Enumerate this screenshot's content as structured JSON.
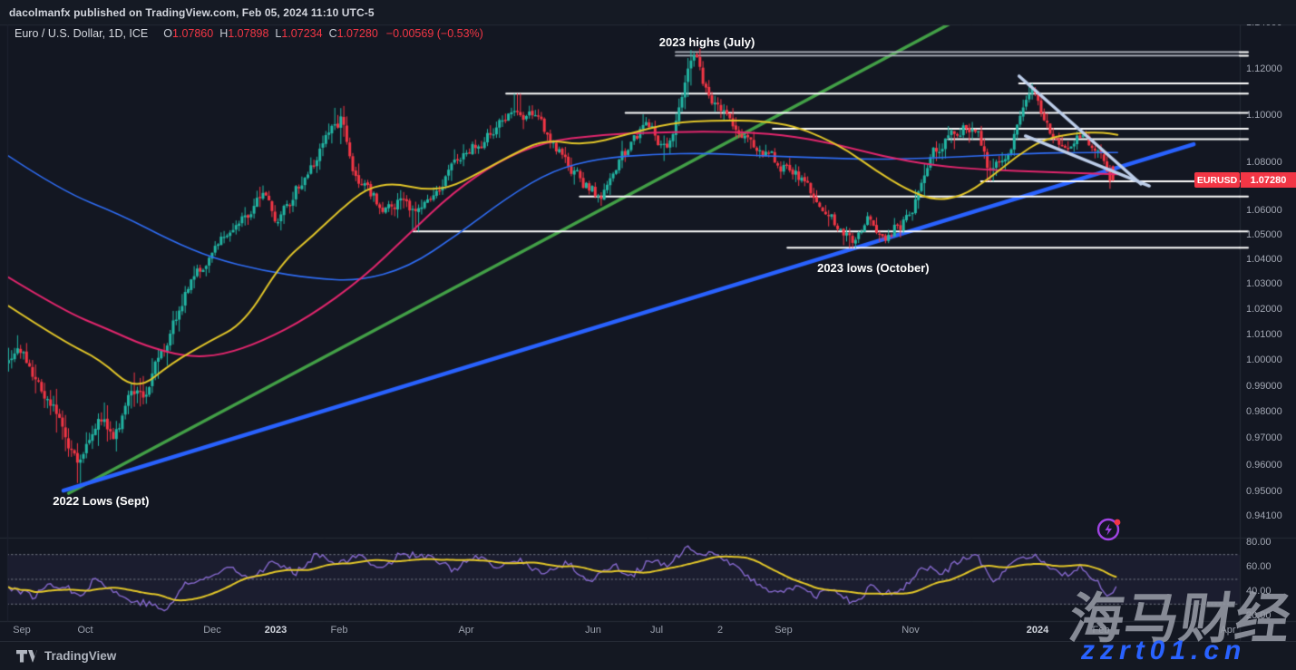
{
  "topbar": {
    "publish_info": "dacolmanfx published on TradingView.com, Feb 05, 2024 11:10 UTC-5"
  },
  "legend": {
    "title": "Euro / U.S. Dollar, 1D, ICE",
    "items": [
      {
        "k": "O",
        "v": "1.07860"
      },
      {
        "k": "H",
        "v": "1.07898"
      },
      {
        "k": "L",
        "v": "1.07234"
      },
      {
        "k": "C",
        "v": "1.07280"
      }
    ],
    "change": "−0.00569 (−0.53%)"
  },
  "price_label": {
    "symbol": "EURUSD",
    "value": "1.07280"
  },
  "price_axis": {
    "values": [
      "1.14000",
      "1.12000",
      "1.10000",
      "1.08000",
      "1.06000",
      "1.05000",
      "1.04000",
      "1.03000",
      "1.02000",
      "1.01000",
      "1.00000",
      "0.99000",
      "0.98000",
      "0.97000",
      "0.96000",
      "0.95000",
      "0.94100"
    ],
    "scale": "log"
  },
  "rsi_axis": {
    "values": [
      "80.00",
      "60.00",
      "40.00",
      "20.00"
    ]
  },
  "time_axis": [
    {
      "label": "Sep",
      "t": 0,
      "bold": false
    },
    {
      "label": "Oct",
      "t": 1,
      "bold": false
    },
    {
      "label": "Dec",
      "t": 3,
      "bold": false
    },
    {
      "label": "2023",
      "t": 4,
      "bold": true
    },
    {
      "label": "Feb",
      "t": 5,
      "bold": false
    },
    {
      "label": "Apr",
      "t": 7,
      "bold": false
    },
    {
      "label": "Jun",
      "t": 9,
      "bold": false
    },
    {
      "label": "Jul",
      "t": 10,
      "bold": false
    },
    {
      "label": "2",
      "t": 11,
      "bold": false
    },
    {
      "label": "Sep",
      "t": 12,
      "bold": false
    },
    {
      "label": "Nov",
      "t": 14,
      "bold": false
    },
    {
      "label": "2024",
      "t": 16,
      "bold": true
    },
    {
      "label": "Feb",
      "t": 17,
      "bold": false
    },
    {
      "label": "Apr",
      "t": 19,
      "bold": false
    }
  ],
  "watermark": {
    "line1": "海马财经",
    "line2": "zzrt01.cn"
  },
  "footer": {
    "brand": "TradingView"
  },
  "colors": {
    "background": "#131722",
    "up_candle": "#22b5a3",
    "down_candle": "#f23645",
    "ma_yellow": "#e2c629",
    "ma_pink": "#e2266d",
    "ma_blue": "#2f6df5",
    "trend_green": "#43a047",
    "trend_blue": "#2962ff",
    "wedge": "#bccde9",
    "level_white": "#ffffff",
    "level_gray": "#b4b8c1",
    "rsi_purple": "#8568cc",
    "rsi_yellow": "#e2c629",
    "rsi_band": "rgba(133,104,204,0.08)",
    "rsi_dash": "#767b87",
    "accent_red": "#f23645",
    "separator": "#262b36"
  },
  "chart_data": {
    "type": "candlestick",
    "symbol": "EURUSD",
    "title": "Euro / U.S. Dollar",
    "timeframe": "1D",
    "exchange": "ICE",
    "last_candle": {
      "open": 1.0786,
      "high": 1.07898,
      "low": 1.07234,
      "close": 1.0728,
      "change": -0.00569,
      "change_pct": -0.53
    },
    "x_unit": "months_since_2022-09-01",
    "y_scale": "log",
    "visible_price_range": [
      0.941,
      1.14
    ],
    "price_path": [
      [
        -0.25,
        1.0015
      ],
      [
        0,
        1.004
      ],
      [
        0.25,
        0.992
      ],
      [
        0.5,
        0.983
      ],
      [
        0.7,
        0.972
      ],
      [
        0.9,
        0.96
      ],
      [
        1.05,
        0.969
      ],
      [
        1.25,
        0.978
      ],
      [
        1.45,
        0.972
      ],
      [
        1.7,
        0.986
      ],
      [
        1.95,
        0.988
      ],
      [
        2.2,
        1.002
      ],
      [
        2.45,
        1.018
      ],
      [
        2.7,
        1.032
      ],
      [
        3.0,
        1.042
      ],
      [
        3.3,
        1.053
      ],
      [
        3.6,
        1.06
      ],
      [
        3.85,
        1.067
      ],
      [
        4.05,
        1.054
      ],
      [
        4.3,
        1.068
      ],
      [
        4.6,
        1.08
      ],
      [
        4.85,
        1.092
      ],
      [
        5.05,
        1.099
      ],
      [
        5.2,
        1.081
      ],
      [
        5.45,
        1.068
      ],
      [
        5.7,
        1.061
      ],
      [
        5.95,
        1.064
      ],
      [
        6.2,
        1.057
      ],
      [
        6.45,
        1.065
      ],
      [
        6.7,
        1.073
      ],
      [
        6.95,
        1.083
      ],
      [
        7.2,
        1.088
      ],
      [
        7.5,
        1.095
      ],
      [
        7.8,
        1.102
      ],
      [
        8.05,
        1.099
      ],
      [
        8.35,
        1.089
      ],
      [
        8.65,
        1.077
      ],
      [
        8.95,
        1.069
      ],
      [
        9.1,
        1.066
      ],
      [
        9.35,
        1.077
      ],
      [
        9.65,
        1.09
      ],
      [
        9.85,
        1.096
      ],
      [
        10.05,
        1.088
      ],
      [
        10.2,
        1.086
      ],
      [
        10.4,
        1.108
      ],
      [
        10.5,
        1.12
      ],
      [
        10.62,
        1.123
      ],
      [
        10.75,
        1.113
      ],
      [
        10.95,
        1.102
      ],
      [
        11.2,
        1.096
      ],
      [
        11.5,
        1.089
      ],
      [
        11.8,
        1.082
      ],
      [
        12.1,
        1.077
      ],
      [
        12.4,
        1.07
      ],
      [
        12.7,
        1.058
      ],
      [
        12.95,
        1.051
      ],
      [
        13.1,
        1.048
      ],
      [
        13.35,
        1.056
      ],
      [
        13.6,
        1.052
      ],
      [
        13.85,
        1.055
      ],
      [
        14.1,
        1.065
      ],
      [
        14.35,
        1.085
      ],
      [
        14.6,
        1.091
      ],
      [
        14.85,
        1.096
      ],
      [
        15.05,
        1.094
      ],
      [
        15.25,
        1.075
      ],
      [
        15.45,
        1.083
      ],
      [
        15.7,
        1.095
      ],
      [
        15.9,
        1.11
      ],
      [
        16.05,
        1.1
      ],
      [
        16.2,
        1.092
      ],
      [
        16.45,
        1.088
      ],
      [
        16.7,
        1.092
      ],
      [
        16.9,
        1.086
      ],
      [
        17.05,
        1.082
      ],
      [
        17.13,
        1.077
      ],
      [
        17.17,
        1.073
      ]
    ],
    "key_extremes": [
      {
        "t": 0.9,
        "type": "low",
        "price": 0.9536
      },
      {
        "t": 5.05,
        "type": "high",
        "price": 1.1033
      },
      {
        "t": 6.2,
        "type": "low",
        "price": 1.0516
      },
      {
        "t": 7.8,
        "type": "high",
        "price": 1.1095
      },
      {
        "t": 9.1,
        "type": "low",
        "price": 1.0635
      },
      {
        "t": 10.62,
        "type": "high",
        "price": 1.127
      },
      {
        "t": 13.08,
        "type": "low",
        "price": 1.0448
      },
      {
        "t": 15.25,
        "type": "low",
        "price": 1.0723
      },
      {
        "t": 15.9,
        "type": "high",
        "price": 1.1139
      }
    ],
    "ma_yellow": [
      [
        -0.23,
        1.0219
      ],
      [
        0.66,
        1.0074
      ],
      [
        1.23,
        1.0007
      ],
      [
        1.8,
        0.9881
      ],
      [
        2.37,
        0.9993
      ],
      [
        2.94,
        1.0074
      ],
      [
        3.51,
        1.0148
      ],
      [
        4.09,
        1.0389
      ],
      [
        4.59,
        1.05
      ],
      [
        5.01,
        1.0604
      ],
      [
        5.44,
        1.0696
      ],
      [
        5.87,
        1.0715
      ],
      [
        6.3,
        1.0689
      ],
      [
        6.73,
        1.0696
      ],
      [
        7.16,
        1.0752
      ],
      [
        7.66,
        1.0826
      ],
      [
        8.23,
        1.09
      ],
      [
        8.87,
        1.0874
      ],
      [
        9.51,
        1.0919
      ],
      [
        10.23,
        1.097
      ],
      [
        10.94,
        1.0981
      ],
      [
        11.66,
        1.0978
      ],
      [
        12.16,
        1.0956
      ],
      [
        12.59,
        1.0911
      ],
      [
        13.01,
        1.0852
      ],
      [
        13.44,
        1.077
      ],
      [
        13.94,
        1.0689
      ],
      [
        14.37,
        1.0644
      ],
      [
        14.8,
        1.0659
      ],
      [
        15.23,
        1.0733
      ],
      [
        15.66,
        1.0826
      ],
      [
        16.09,
        1.09
      ],
      [
        16.59,
        1.0926
      ],
      [
        17.01,
        1.093
      ],
      [
        17.26,
        1.0919
      ]
    ],
    "ma_pink": [
      [
        -0.23,
        1.0333
      ],
      [
        0.66,
        1.0196
      ],
      [
        1.37,
        1.0122
      ],
      [
        1.94,
        1.0059
      ],
      [
        2.59,
        1.0015
      ],
      [
        3.16,
        1.0022
      ],
      [
        3.8,
        1.0078
      ],
      [
        4.51,
        1.017
      ],
      [
        5.37,
        1.0326
      ],
      [
        6.09,
        1.0504
      ],
      [
        6.8,
        1.0678
      ],
      [
        7.51,
        1.0807
      ],
      [
        8.23,
        1.0889
      ],
      [
        9.09,
        1.0919
      ],
      [
        9.99,
        1.093
      ],
      [
        11.09,
        1.0933
      ],
      [
        11.99,
        1.0919
      ],
      [
        12.8,
        1.0881
      ],
      [
        13.59,
        1.0826
      ],
      [
        14.37,
        1.0789
      ],
      [
        15.23,
        1.077
      ],
      [
        16.09,
        1.0763
      ],
      [
        16.8,
        1.0756
      ],
      [
        17.26,
        1.0752
      ]
    ],
    "ma_blue": [
      [
        -0.23,
        1.0833
      ],
      [
        0.61,
        1.0685
      ],
      [
        1.56,
        1.0585
      ],
      [
        2.33,
        1.0481
      ],
      [
        3.01,
        1.0407
      ],
      [
        3.8,
        1.0356
      ],
      [
        4.59,
        1.0326
      ],
      [
        5.3,
        1.0315
      ],
      [
        6.09,
        1.037
      ],
      [
        6.87,
        1.0504
      ],
      [
        7.66,
        1.0659
      ],
      [
        8.37,
        1.077
      ],
      [
        9.09,
        1.0819
      ],
      [
        9.94,
        1.0837
      ],
      [
        10.8,
        1.0841
      ],
      [
        11.66,
        1.083
      ],
      [
        12.51,
        1.0822
      ],
      [
        13.37,
        1.0815
      ],
      [
        14.23,
        1.0819
      ],
      [
        15.09,
        1.083
      ],
      [
        15.94,
        1.0841
      ],
      [
        16.66,
        1.0844
      ],
      [
        17.26,
        1.0844
      ]
    ],
    "levels": [
      {
        "price": 1.1276,
        "from_t": 10.3,
        "style": "double"
      },
      {
        "price": 1.1139,
        "from_t": 15.71,
        "style": "solid"
      },
      {
        "price": 1.1095,
        "from_t": 7.63,
        "style": "solid"
      },
      {
        "price": 1.1012,
        "from_t": 9.51,
        "style": "solid"
      },
      {
        "price": 1.0945,
        "from_t": 11.83,
        "style": "solid"
      },
      {
        "price": 1.09,
        "from_t": 14.59,
        "style": "solid"
      },
      {
        "price": 1.0723,
        "from_t": 15.11,
        "style": "solid"
      },
      {
        "price": 1.066,
        "from_t": 8.79,
        "style": "solid"
      },
      {
        "price": 1.0516,
        "from_t": 6.16,
        "style": "solid"
      },
      {
        "price": 1.045,
        "from_t": 12.06,
        "style": "solid"
      }
    ],
    "trendlines": [
      {
        "name": "green-uptrend",
        "t0": 0.74,
        "p0": 0.9498,
        "t1": 14.84,
        "p1": 1.1434,
        "color": "trend_green",
        "width": 3.5
      },
      {
        "name": "blue-support",
        "t0": 0.657,
        "p0": 0.9508,
        "t1": 18.46,
        "p1": 1.0879,
        "color": "trend_blue",
        "width": 4.5
      },
      {
        "name": "wedge-upper",
        "t0": 15.71,
        "p0": 1.1171,
        "t1": 17.63,
        "p1": 1.0712,
        "color": "wedge",
        "width": 3.5
      },
      {
        "name": "wedge-lower",
        "t0": 15.81,
        "p0": 1.0914,
        "t1": 17.76,
        "p1": 1.0704,
        "color": "wedge",
        "width": 3.5
      }
    ],
    "annotations": [
      {
        "text": "2023 highs (July)",
        "t": 10.04,
        "price": 1.1317
      },
      {
        "text": "2023 lows (October)",
        "t": 12.53,
        "price": 1.0367
      },
      {
        "text": "2022 Lows (Sept)",
        "t": 0.49,
        "price": 0.9468
      }
    ],
    "rsi": {
      "range": [
        20,
        80
      ],
      "guide_levels": [
        70,
        50,
        30
      ],
      "series": [
        [
          -0.3,
          46
        ],
        [
          0,
          40
        ],
        [
          0.2,
          36
        ],
        [
          0.45,
          47
        ],
        [
          0.7,
          43
        ],
        [
          0.95,
          38
        ],
        [
          1.15,
          51
        ],
        [
          1.6,
          35
        ],
        [
          2.0,
          30
        ],
        [
          2.3,
          25
        ],
        [
          2.55,
          46
        ],
        [
          2.9,
          50
        ],
        [
          3.3,
          61
        ],
        [
          3.6,
          51
        ],
        [
          3.95,
          64
        ],
        [
          4.3,
          55
        ],
        [
          4.65,
          71
        ],
        [
          5.0,
          63
        ],
        [
          5.35,
          69
        ],
        [
          5.7,
          58
        ],
        [
          5.95,
          71
        ],
        [
          6.4,
          68
        ],
        [
          6.8,
          58
        ],
        [
          7.15,
          68
        ],
        [
          7.5,
          59
        ],
        [
          7.85,
          66
        ],
        [
          8.2,
          54
        ],
        [
          8.6,
          63
        ],
        [
          8.95,
          48
        ],
        [
          9.3,
          62
        ],
        [
          9.6,
          53
        ],
        [
          9.9,
          65
        ],
        [
          10.2,
          60
        ],
        [
          10.45,
          76
        ],
        [
          10.7,
          68
        ],
        [
          10.95,
          72
        ],
        [
          11.3,
          58
        ],
        [
          11.6,
          45
        ],
        [
          11.9,
          40
        ],
        [
          12.2,
          44
        ],
        [
          12.5,
          36
        ],
        [
          12.8,
          42
        ],
        [
          13.1,
          30
        ],
        [
          13.4,
          45
        ],
        [
          13.6,
          38
        ],
        [
          13.9,
          43
        ],
        [
          14.2,
          60
        ],
        [
          14.5,
          55
        ],
        [
          14.8,
          66
        ],
        [
          15.05,
          70
        ],
        [
          15.3,
          46
        ],
        [
          15.6,
          62
        ],
        [
          15.9,
          70
        ],
        [
          16.15,
          60
        ],
        [
          16.4,
          52
        ],
        [
          16.7,
          60
        ],
        [
          16.95,
          48
        ],
        [
          17.1,
          38
        ],
        [
          17.2,
          42
        ]
      ]
    }
  }
}
